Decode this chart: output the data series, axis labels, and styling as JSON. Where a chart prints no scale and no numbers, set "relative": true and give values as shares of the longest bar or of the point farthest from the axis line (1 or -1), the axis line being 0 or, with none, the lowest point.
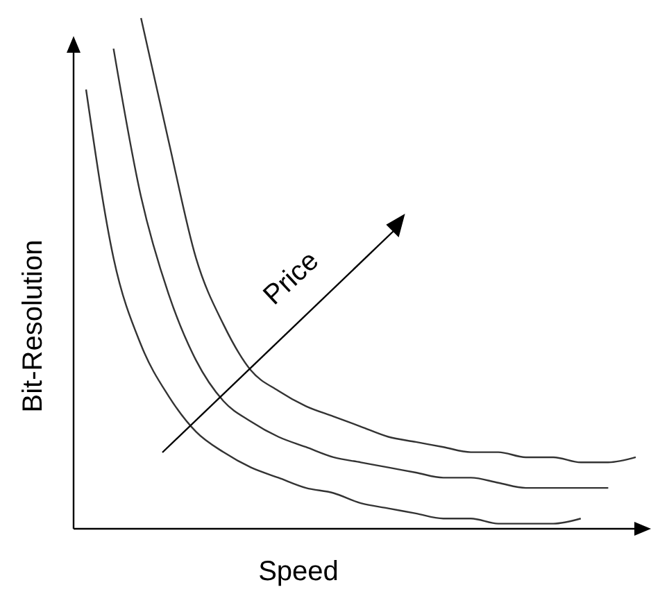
{
  "chart_data": {
    "type": "line",
    "relative": true,
    "xlabel": "Speed",
    "ylabel": "Bit-Resolution",
    "annotations": [
      "Price"
    ],
    "categories": [
      null,
      null,
      null,
      null,
      null,
      null,
      null,
      null,
      null,
      null,
      null,
      null,
      null,
      null,
      null,
      null,
      null,
      null,
      null,
      null,
      null
    ],
    "series": [
      {
        "color": "#333333",
        "values": [
          0.86,
          0.53,
          0.36,
          0.26,
          0.19,
          0.15,
          0.12,
          0.1,
          0.08,
          0.07,
          0.05,
          0.04,
          0.03,
          0.02,
          0.02,
          0.01,
          0.01,
          0.01,
          0.02,
          null,
          null
        ]
      },
      {
        "color": "#333333",
        "values": [
          null,
          0.94,
          0.65,
          0.46,
          0.33,
          0.25,
          0.21,
          0.18,
          0.16,
          0.14,
          0.13,
          0.12,
          0.11,
          0.1,
          0.1,
          0.09,
          0.08,
          0.08,
          0.08,
          0.08,
          null
        ]
      },
      {
        "color": "#333333",
        "values": [
          null,
          null,
          1.0,
          0.76,
          0.53,
          0.4,
          0.31,
          0.27,
          0.24,
          0.22,
          0.2,
          0.18,
          0.17,
          0.16,
          0.15,
          0.15,
          0.14,
          0.14,
          0.13,
          0.13,
          0.14
        ]
      }
    ]
  }
}
